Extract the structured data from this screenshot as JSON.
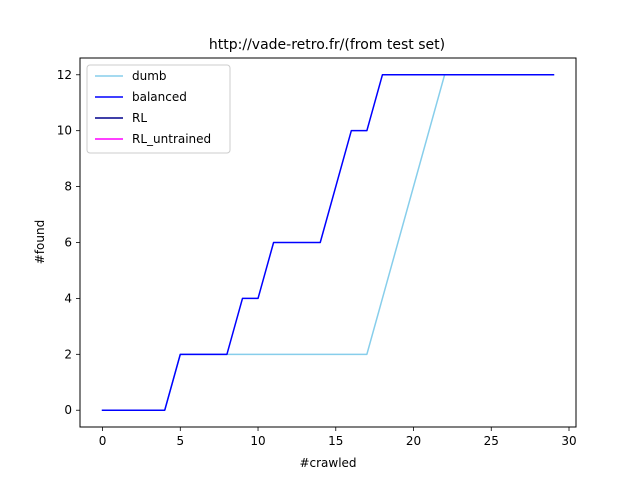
{
  "chart_data": {
    "type": "line",
    "title": "http://vade-retro.fr/(from test set)",
    "xlabel": "#crawled",
    "ylabel": "#found",
    "xlim": [
      -1.45,
      30.45
    ],
    "ylim": [
      -0.6,
      12.6
    ],
    "xticks": [
      0,
      5,
      10,
      15,
      20,
      25,
      30
    ],
    "yticks": [
      0,
      2,
      4,
      6,
      8,
      10,
      12
    ],
    "grid": false,
    "legend_position": "top-left",
    "series": [
      {
        "name": "dumb",
        "color": "#87ceeb",
        "x": [
          0,
          4,
          5,
          17,
          22,
          29
        ],
        "y": [
          0,
          0,
          2,
          2,
          12,
          12
        ]
      },
      {
        "name": "balanced",
        "color": "#0000ff",
        "x": [
          0,
          4,
          5,
          8,
          9,
          10,
          11,
          14,
          16,
          17,
          18,
          29
        ],
        "y": [
          0,
          0,
          2,
          2,
          4,
          4,
          6,
          6,
          10,
          10,
          12,
          12
        ]
      },
      {
        "name": "RL",
        "color": "#00008b",
        "x": [],
        "y": []
      },
      {
        "name": "RL_untrained",
        "color": "#ff00ff",
        "x": [],
        "y": []
      }
    ]
  }
}
